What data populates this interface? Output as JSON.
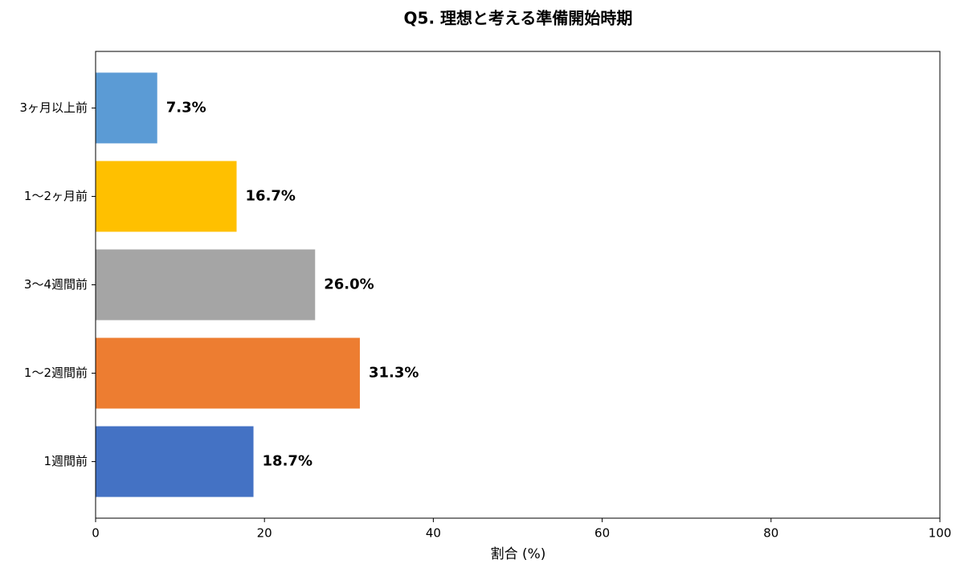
{
  "chart_data": {
    "type": "barh",
    "title": "Q5. 理想と考える準備開始時期",
    "categories": [
      "3ヶ月以上前",
      "1〜2ヶ月前",
      "3〜4週間前",
      "1〜2週間前",
      "1週間前"
    ],
    "values": [
      7.3,
      16.7,
      26.0,
      31.3,
      18.7
    ],
    "value_labels": [
      "7.3%",
      "16.7%",
      "26.0%",
      "31.3%",
      "18.7%"
    ],
    "colors": [
      "#5b9bd5",
      "#ffc000",
      "#a5a5a5",
      "#ed7d31",
      "#4472c4"
    ],
    "xlabel": "割合 (%)",
    "xlim": [
      0,
      100
    ],
    "xticks": [
      0,
      20,
      40,
      60,
      80,
      100
    ],
    "grid": false
  }
}
